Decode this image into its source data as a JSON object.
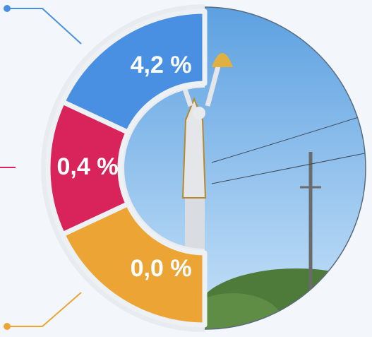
{
  "segments": [
    {
      "label": "4,2 %",
      "color": "#4a90e2"
    },
    {
      "label": "0,4 %",
      "color": "#d8245a"
    },
    {
      "label": "0,0 %",
      "color": "#eca535"
    }
  ]
}
